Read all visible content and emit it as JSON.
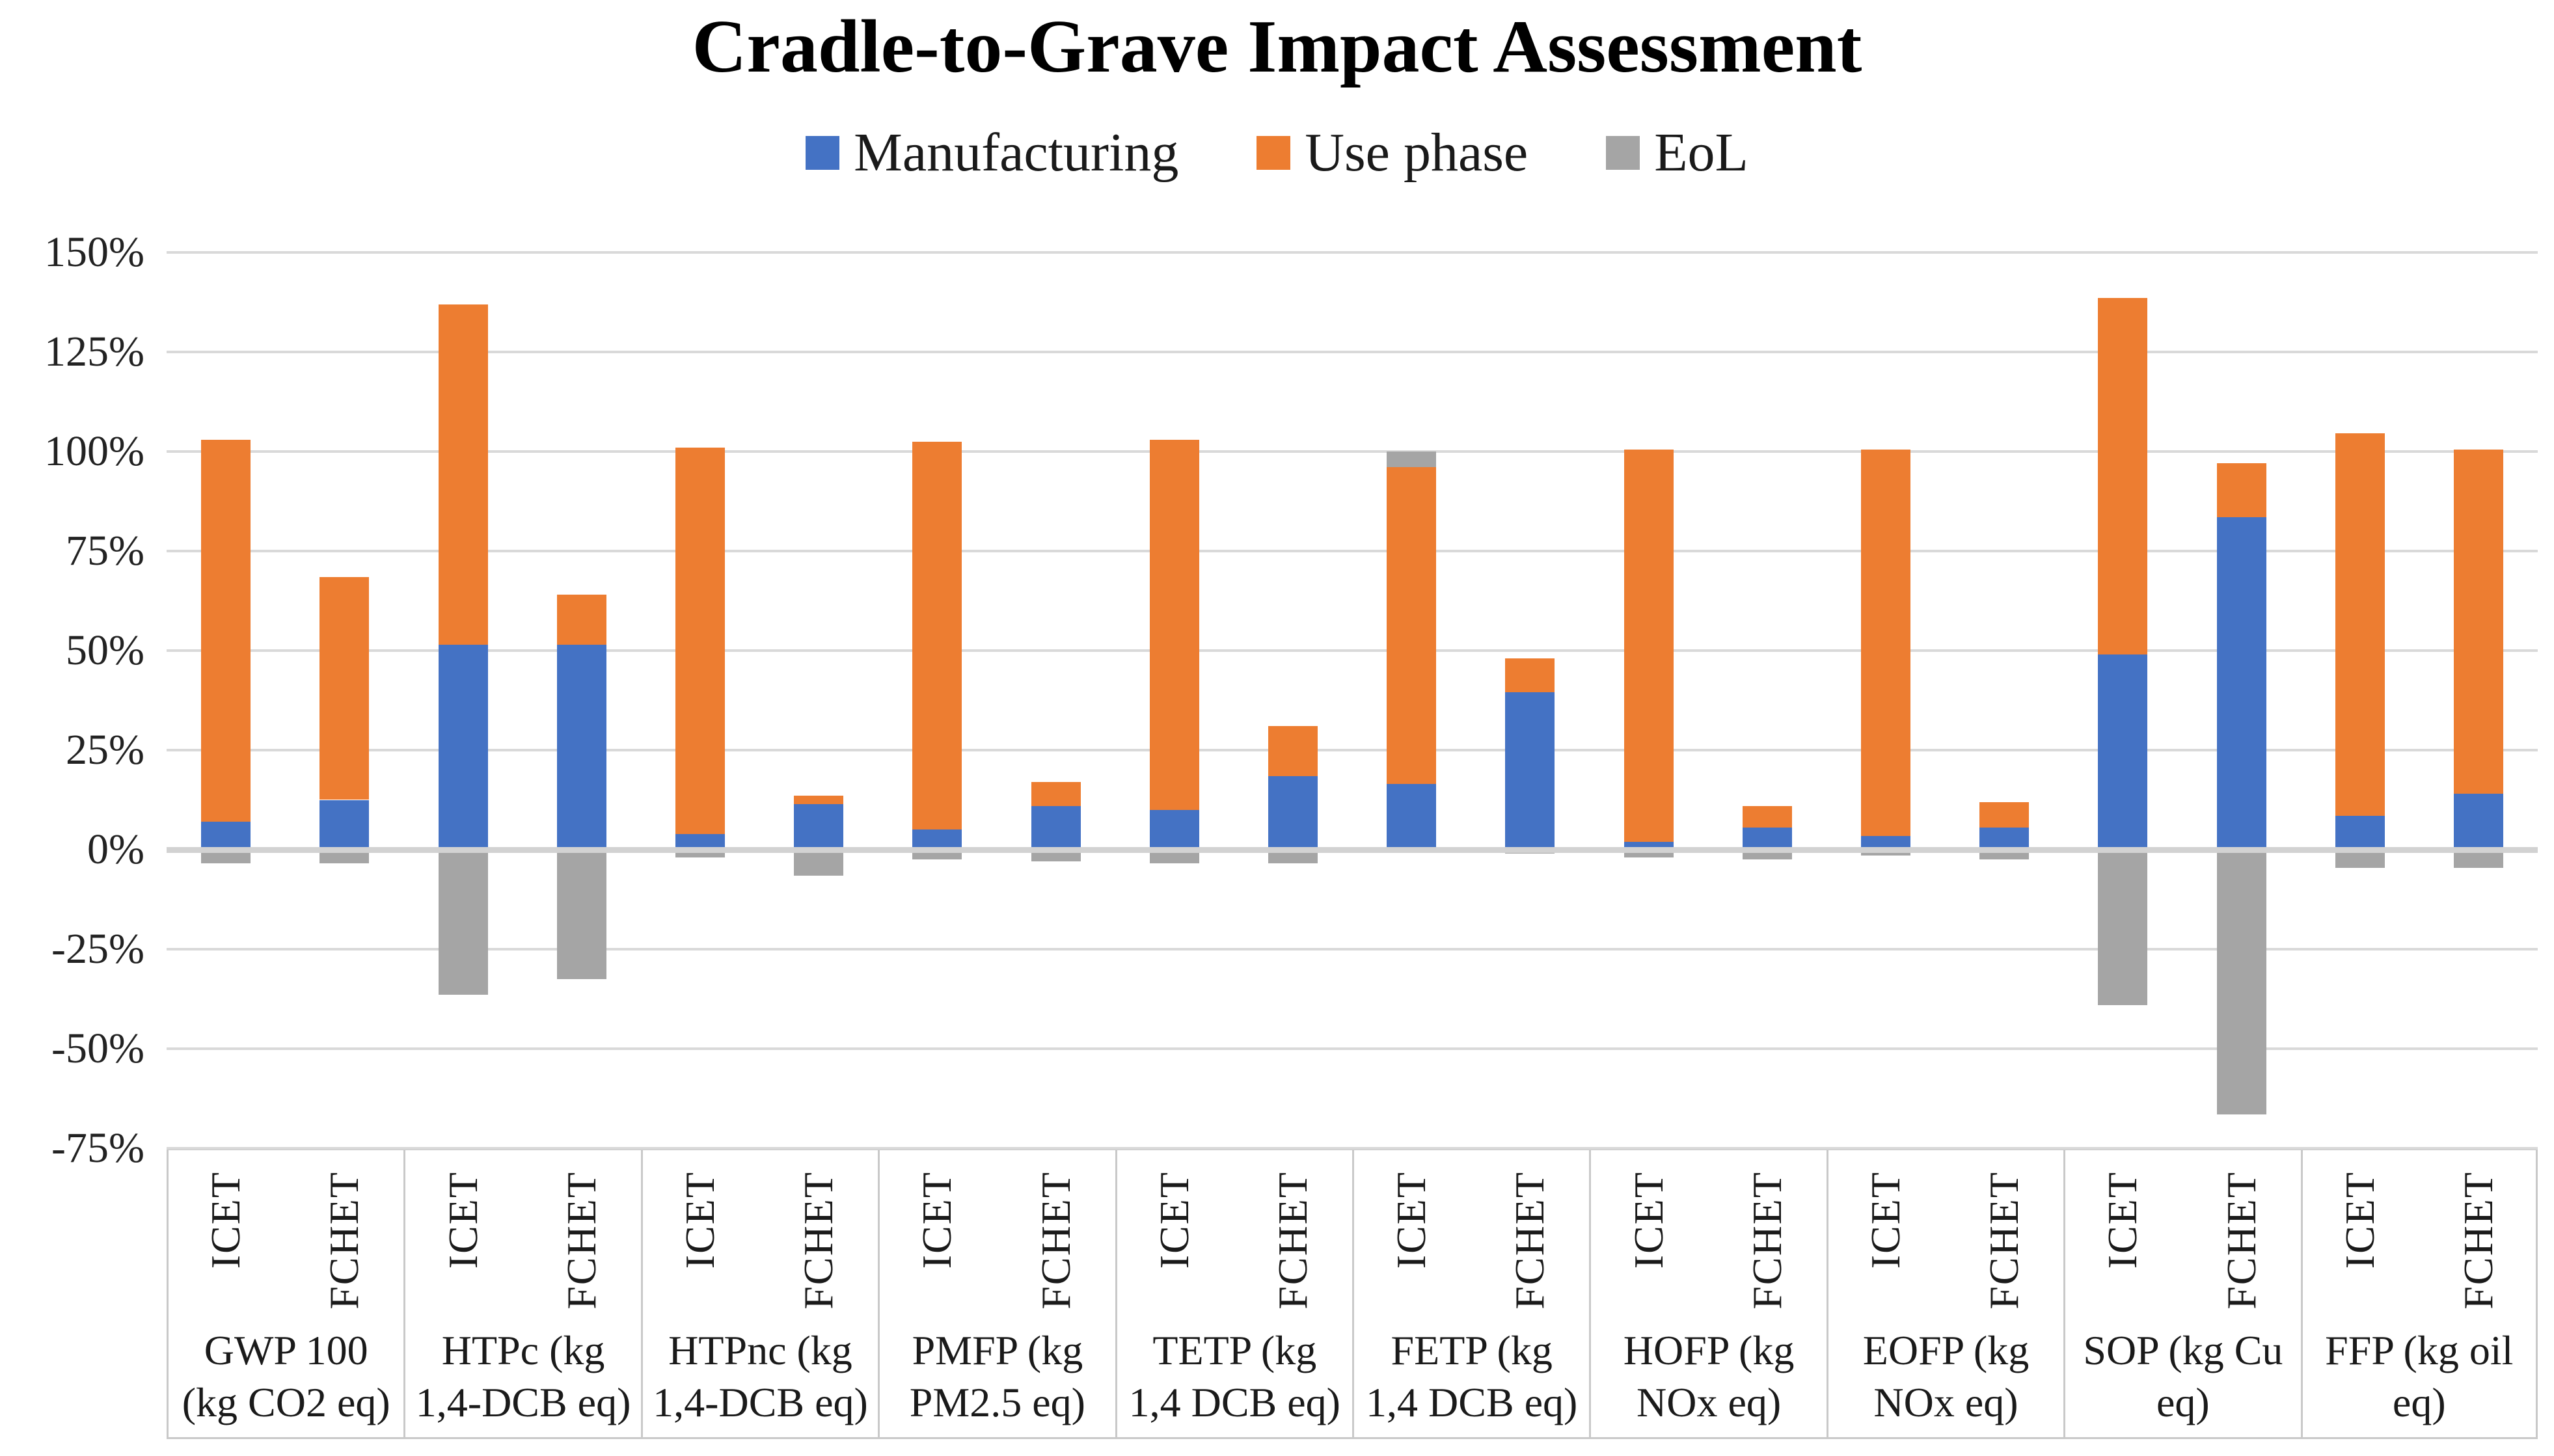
{
  "chart_data": {
    "type": "bar",
    "stacked": true,
    "title": "Cradle-to-Grave Impact Assessment",
    "legend_position": "top",
    "grid": true,
    "units": "%",
    "series": [
      {
        "key": "manufacturing",
        "name": "Manufacturing",
        "color": "#4472C4"
      },
      {
        "key": "use_phase",
        "name": "Use phase",
        "color": "#ED7D31"
      },
      {
        "key": "eol",
        "name": "EoL",
        "color": "#A5A5A5"
      }
    ],
    "y_axis": {
      "min": -75,
      "max": 150,
      "step": 25,
      "tick_labels": [
        "150%",
        "125%",
        "100%",
        "75%",
        "50%",
        "25%",
        "0%",
        "-25%",
        "-50%",
        "-75%"
      ]
    },
    "bar_variants": [
      "ICET",
      "FCHET"
    ],
    "groups": [
      {
        "label_line1": "GWP 100",
        "label_line2": "(kg CO2 eq)",
        "bars": [
          {
            "label": "ICET",
            "manufacturing": 7,
            "use_phase": 96,
            "eol": -3.5
          },
          {
            "label": "FCHET",
            "manufacturing": 12.5,
            "use_phase": 56,
            "eol": -3.5
          }
        ]
      },
      {
        "label_line1": "HTPc (kg",
        "label_line2": "1,4-DCB eq)",
        "bars": [
          {
            "label": "ICET",
            "manufacturing": 51.5,
            "use_phase": 85.5,
            "eol": -36.5
          },
          {
            "label": "FCHET",
            "manufacturing": 51.5,
            "use_phase": 12.5,
            "eol": -32.5
          }
        ]
      },
      {
        "label_line1": "HTPnc (kg",
        "label_line2": "1,4-DCB eq)",
        "bars": [
          {
            "label": "ICET",
            "manufacturing": 4,
            "use_phase": 97,
            "eol": -2
          },
          {
            "label": "FCHET",
            "manufacturing": 11.5,
            "use_phase": 2,
            "eol": -6.5
          }
        ]
      },
      {
        "label_line1": "PMFP (kg",
        "label_line2": "PM2.5 eq)",
        "bars": [
          {
            "label": "ICET",
            "manufacturing": 5,
            "use_phase": 97.5,
            "eol": -2.5
          },
          {
            "label": "FCHET",
            "manufacturing": 11,
            "use_phase": 6,
            "eol": -3
          }
        ]
      },
      {
        "label_line1": "TETP (kg",
        "label_line2": "1,4 DCB eq)",
        "bars": [
          {
            "label": "ICET",
            "manufacturing": 10,
            "use_phase": 93,
            "eol": -3.5
          },
          {
            "label": "FCHET",
            "manufacturing": 18.5,
            "use_phase": 12.5,
            "eol": -3.5
          }
        ]
      },
      {
        "label_line1": "FETP (kg",
        "label_line2": "1,4 DCB eq)",
        "bars": [
          {
            "label": "ICET",
            "manufacturing": 16.5,
            "use_phase": 79.5,
            "eol": 4
          },
          {
            "label": "FCHET",
            "manufacturing": 39.5,
            "use_phase": 8.5,
            "eol": -1
          }
        ]
      },
      {
        "label_line1": "HOFP (kg",
        "label_line2": "NOx eq)",
        "bars": [
          {
            "label": "ICET",
            "manufacturing": 2,
            "use_phase": 98.5,
            "eol": -2
          },
          {
            "label": "FCHET",
            "manufacturing": 5.5,
            "use_phase": 5.5,
            "eol": -2.5
          }
        ]
      },
      {
        "label_line1": "EOFP (kg",
        "label_line2": "NOx eq)",
        "bars": [
          {
            "label": "ICET",
            "manufacturing": 3.5,
            "use_phase": 97,
            "eol": -1.5
          },
          {
            "label": "FCHET",
            "manufacturing": 5.5,
            "use_phase": 6.5,
            "eol": -2.5
          }
        ]
      },
      {
        "label_line1": "SOP (kg Cu",
        "label_line2": "eq)",
        "bars": [
          {
            "label": "ICET",
            "manufacturing": 49,
            "use_phase": 89.5,
            "eol": -39
          },
          {
            "label": "FCHET",
            "manufacturing": 83.5,
            "use_phase": 13.5,
            "eol": -66.5
          }
        ]
      },
      {
        "label_line1": "FFP (kg oil",
        "label_line2": "eq)",
        "bars": [
          {
            "label": "ICET",
            "manufacturing": 8.5,
            "use_phase": 96,
            "eol": -4.5
          },
          {
            "label": "FCHET",
            "manufacturing": 14,
            "use_phase": 86.5,
            "eol": -4.5
          }
        ]
      }
    ]
  }
}
